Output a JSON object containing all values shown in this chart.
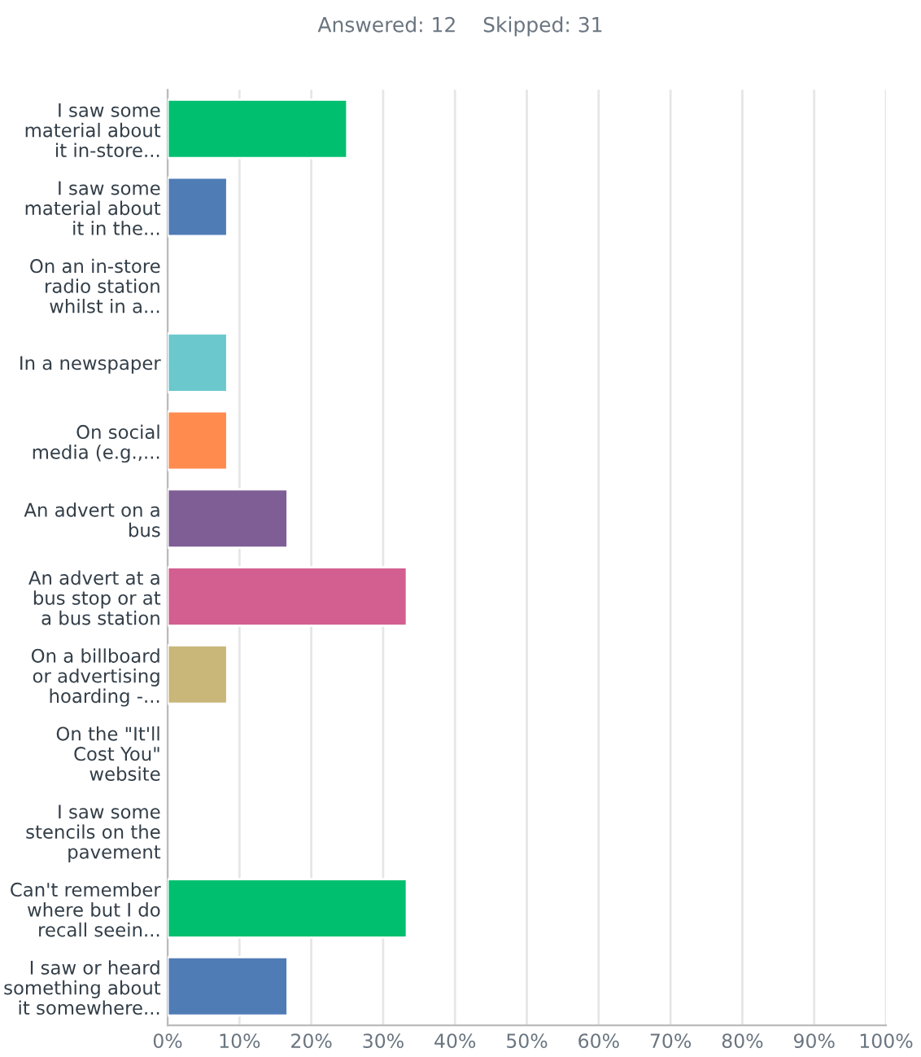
{
  "chart_data": {
    "type": "bar",
    "orientation": "horizontal",
    "title": "Answered: 12    Skipped: 31",
    "categories": [
      "I saw some\nmaterial about\nit in-store...",
      "I saw some\nmaterial about\nit in the...",
      "On an in-store\nradio station\nwhilst in a...",
      "In a newspaper",
      "On social\nmedia (e.g.,...",
      "An advert on a\nbus",
      "An advert at a\nbus stop or at\na bus station",
      "On a billboard\nor advertising\nhoarding -...",
      "On the \"It'll\nCost You\"\nwebsite",
      "I saw some\nstencils on the\npavement",
      "Can't remember\nwhere but I do\nrecall seein...",
      "I saw or heard\nsomething about\nit somewhere..."
    ],
    "values": [
      25,
      8.3,
      0,
      8.3,
      8.3,
      16.7,
      33.3,
      8.3,
      0,
      0,
      33.3,
      16.7
    ],
    "colors": [
      "#00bf6f",
      "#507cb6",
      null,
      "#6bc8cd",
      "#ff8b4f",
      "#7f5e96",
      "#d25f90",
      "#c8b779",
      null,
      null,
      "#00bf6f",
      "#507cb6"
    ],
    "xlim": [
      0,
      100
    ],
    "xticks": [
      {
        "value": 0,
        "label": "0%"
      },
      {
        "value": 10,
        "label": "10%"
      },
      {
        "value": 20,
        "label": "20%"
      },
      {
        "value": 30,
        "label": "30%"
      },
      {
        "value": 40,
        "label": "40%"
      },
      {
        "value": 50,
        "label": "50%"
      },
      {
        "value": 60,
        "label": "60%"
      },
      {
        "value": 70,
        "label": "70%"
      },
      {
        "value": 80,
        "label": "80%"
      },
      {
        "value": 90,
        "label": "90%"
      },
      {
        "value": 100,
        "label": "100%"
      }
    ],
    "grid": "x"
  }
}
